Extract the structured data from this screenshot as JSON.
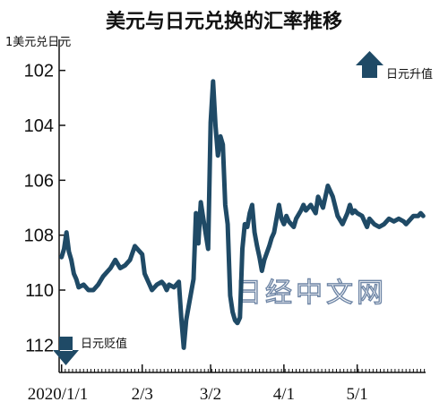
{
  "chart_data": {
    "type": "line",
    "title": "美元与日元兑换的汇率推移",
    "ylabel": "1美元兑日元",
    "y_axis_reversed": true,
    "ylim": [
      101,
      113
    ],
    "yticks": [
      102,
      104,
      106,
      108,
      110,
      112
    ],
    "xlim": [
      "2019-12-31",
      "2020-05-29"
    ],
    "xticks": [
      {
        "date": "2020-01-01",
        "label": "2020/1/1"
      },
      {
        "date": "2020-02-03",
        "label": "2/3"
      },
      {
        "date": "2020-03-02",
        "label": "3/2"
      },
      {
        "date": "2020-04-01",
        "label": "4/1"
      },
      {
        "date": "2020-05-01",
        "label": "5/1"
      }
    ],
    "legend_up": "日元升值",
    "legend_down": "日元贬值",
    "watermark": "日经中文网",
    "line_color": "#1f4a66",
    "grid": false,
    "series": [
      {
        "x": [
          "2020-01-01",
          "2020-01-02",
          "2020-01-03",
          "2020-01-04",
          "2020-01-05",
          "2020-01-06",
          "2020-01-07",
          "2020-01-08",
          "2020-01-10",
          "2020-01-12",
          "2020-01-14",
          "2020-01-16",
          "2020-01-18",
          "2020-01-21",
          "2020-01-23",
          "2020-01-25",
          "2020-01-27",
          "2020-01-29",
          "2020-01-31",
          "2020-02-03",
          "2020-02-04",
          "2020-02-06",
          "2020-02-07",
          "2020-02-09",
          "2020-02-11",
          "2020-02-12",
          "2020-02-13",
          "2020-02-14",
          "2020-02-16",
          "2020-02-18",
          "2020-02-19",
          "2020-02-20",
          "2020-02-21",
          "2020-02-22",
          "2020-02-24",
          "2020-02-25",
          "2020-02-26",
          "2020-02-27",
          "2020-02-28",
          "2020-03-01",
          "2020-03-02",
          "2020-03-03",
          "2020-03-04",
          "2020-03-05",
          "2020-03-06",
          "2020-03-07",
          "2020-03-08",
          "2020-03-09",
          "2020-03-10",
          "2020-03-11",
          "2020-03-12",
          "2020-03-13",
          "2020-03-14",
          "2020-03-15",
          "2020-03-16",
          "2020-03-17",
          "2020-03-18",
          "2020-03-19",
          "2020-03-20",
          "2020-03-21",
          "2020-03-22",
          "2020-03-23",
          "2020-03-24",
          "2020-03-26",
          "2020-03-27",
          "2020-03-28",
          "2020-03-30",
          "2020-03-31",
          "2020-04-01",
          "2020-04-02",
          "2020-04-03",
          "2020-04-05",
          "2020-04-06",
          "2020-04-08",
          "2020-04-09",
          "2020-04-10",
          "2020-04-12",
          "2020-04-14",
          "2020-04-15",
          "2020-04-17",
          "2020-04-19",
          "2020-04-21",
          "2020-04-23",
          "2020-04-25",
          "2020-04-27",
          "2020-04-28",
          "2020-04-29",
          "2020-04-30",
          "2020-05-01",
          "2020-05-03",
          "2020-05-05",
          "2020-05-06",
          "2020-05-08",
          "2020-05-10",
          "2020-05-12",
          "2020-05-14",
          "2020-05-16",
          "2020-05-18",
          "2020-05-20",
          "2020-05-21",
          "2020-05-22",
          "2020-05-24",
          "2020-05-26",
          "2020-05-27",
          "2020-05-28"
        ],
        "y": [
          108.8,
          108.5,
          107.9,
          108.6,
          108.9,
          109.4,
          109.6,
          109.9,
          109.8,
          110.0,
          110.0,
          109.8,
          109.5,
          109.2,
          108.9,
          109.2,
          109.1,
          108.9,
          108.4,
          108.7,
          109.4,
          109.8,
          110.0,
          109.8,
          109.7,
          109.8,
          110.0,
          109.8,
          109.9,
          109.7,
          111.0,
          112.1,
          111.1,
          110.6,
          109.6,
          107.2,
          108.3,
          106.8,
          107.4,
          108.5,
          103.9,
          102.4,
          104.0,
          105.1,
          104.4,
          104.7,
          106.9,
          107.6,
          110.2,
          110.8,
          111.1,
          111.2,
          111.0,
          108.5,
          107.6,
          107.7,
          107.2,
          106.9,
          107.9,
          108.4,
          108.8,
          109.3,
          108.9,
          108.4,
          108.1,
          107.9,
          106.9,
          107.4,
          107.6,
          107.3,
          107.5,
          107.7,
          107.4,
          107.1,
          106.9,
          107.1,
          106.9,
          107.2,
          106.6,
          107.0,
          106.2,
          106.6,
          107.3,
          107.6,
          107.2,
          106.9,
          107.2,
          107.1,
          107.2,
          107.3,
          107.7,
          107.4,
          107.6,
          107.7,
          107.6,
          107.4,
          107.5,
          107.4,
          107.5,
          107.6,
          107.5,
          107.3,
          107.3,
          107.2,
          107.3
        ]
      }
    ]
  }
}
